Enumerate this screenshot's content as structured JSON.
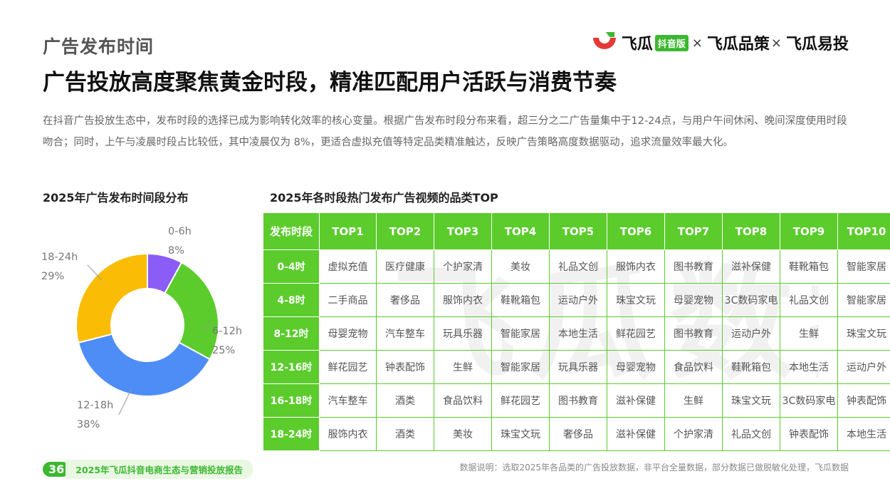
{
  "section_title": "广告发布时间",
  "logo": {
    "brand1": "飞瓜",
    "badge": "抖音版",
    "sep1": "×",
    "brand2": "飞瓜品策",
    "sep2": "×",
    "brand3": "飞瓜易投",
    "mark_color": "#e53935",
    "accent_color": "#3bb82f"
  },
  "watermark_text": "飞瓜数据",
  "headline": "广告投放高度聚焦黄金时段，精准匹配用户活跃与消费节奏",
  "description": "在抖音广告投放生态中，发布时段的选择已成为影响转化效率的核心变量。根据广告发布时段分布来看，超三分之二广告量集中于12-24点，与用户午间休闲、晚间深度使用时段吻合；同时，上午与凌晨时段占比较低，其中凌晨仅为 8%，更适合虚拟充值等特定品类精准触达，反映广告策略高度数据驱动，追求流量效率最大化。",
  "left_title": "2025年广告发布时间段分布",
  "right_title": "2025年各时段热门发布广告视频的品类TOP",
  "chart_data": [
    {
      "type": "pie",
      "title": "2025年广告发布时间段分布",
      "donut": true,
      "categories": [
        "0-6h",
        "6-12h",
        "12-18h",
        "18-24h"
      ],
      "values": [
        8,
        25,
        38,
        29
      ],
      "labels": [
        "8%",
        "25%",
        "38%",
        "29%"
      ],
      "colors": [
        "#8b5cf6",
        "#5bcc2c",
        "#4e8df5",
        "#fbbc05"
      ]
    },
    {
      "type": "table",
      "title": "2025年各时段热门发布广告视频的品类TOP",
      "columns": [
        "发布时段",
        "TOP1",
        "TOP2",
        "TOP3",
        "TOP4",
        "TOP5",
        "TOP6",
        "TOP7",
        "TOP8",
        "TOP9",
        "TOP10"
      ],
      "rows": [
        {
          "period": "0-4时",
          "items": [
            "虚拟充值",
            "医疗健康",
            "个护家清",
            "美妆",
            "礼品文创",
            "服饰内衣",
            "图书教育",
            "滋补保健",
            "鞋靴箱包",
            "智能家居"
          ]
        },
        {
          "period": "4-8时",
          "items": [
            "二手商品",
            "奢侈品",
            "服饰内衣",
            "鞋靴箱包",
            "运动户外",
            "珠宝文玩",
            "母婴宠物",
            "3C数码家电",
            "礼品文创",
            "智能家居"
          ]
        },
        {
          "period": "8-12时",
          "items": [
            "母婴宠物",
            "汽车整车",
            "玩具乐器",
            "智能家居",
            "本地生活",
            "鲜花园艺",
            "图书教育",
            "运动户外",
            "生鲜",
            "珠宝文玩"
          ]
        },
        {
          "period": "12-16时",
          "items": [
            "鲜花园艺",
            "钟表配饰",
            "生鲜",
            "智能家居",
            "玩具乐器",
            "母婴宠物",
            "食品饮料",
            "鞋靴箱包",
            "本地生活",
            "运动户外"
          ]
        },
        {
          "period": "16-18时",
          "items": [
            "汽车整车",
            "酒类",
            "食品饮料",
            "鲜花园艺",
            "图书教育",
            "滋补保健",
            "生鲜",
            "珠宝文玩",
            "3C数码家电",
            "钟表配饰"
          ]
        },
        {
          "period": "18-24时",
          "items": [
            "服饰内衣",
            "酒类",
            "美妆",
            "珠宝文玩",
            "奢侈品",
            "滋补保健",
            "个护家清",
            "礼品文创",
            "钟表配饰",
            "本地生活"
          ]
        }
      ]
    }
  ],
  "footer": {
    "page_number": "36",
    "report_name": "2025年飞瓜抖音电商生态与营销投放报告",
    "note": "数据说明：选取2025年各品类的广告投放数据，非平台全量数据，部分数据已做脱敏化处理，飞瓜数据"
  }
}
